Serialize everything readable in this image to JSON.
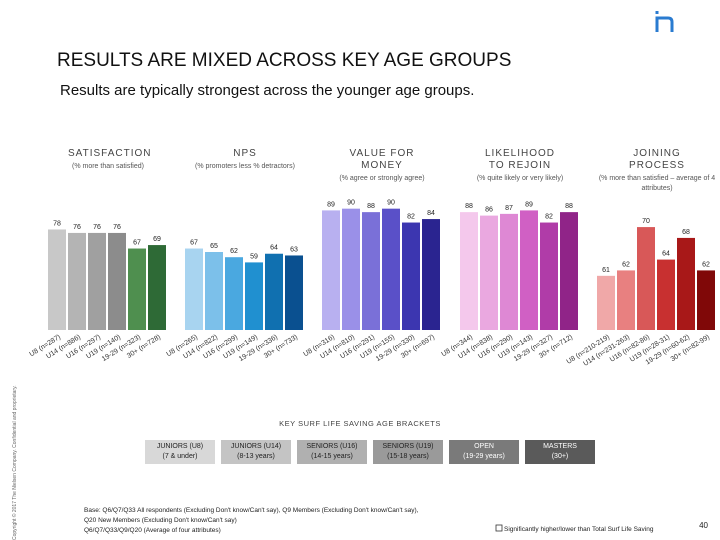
{
  "header": {
    "title": "RESULTS ARE MIXED ACROSS KEY AGE GROUPS",
    "subtitle": "Results are typically strongest across the younger age groups."
  },
  "chart_data": [
    {
      "type": "bar",
      "title": "SATISFACTION",
      "subtitle": "(% more than satisfied)",
      "categories": [
        "U8 (n=287)",
        "U14 (n=886)",
        "U16 (n=297)",
        "U19 (n=140)",
        "19-29 (n=323)",
        "30+ (n=728)"
      ],
      "values": [
        78,
        76,
        76,
        76,
        67,
        69
      ],
      "colors": [
        "#c8c8c8",
        "#b4b4b4",
        "#a0a0a0",
        "#8c8c8c",
        "#4f8f4f",
        "#2e6a36"
      ],
      "ylim": [
        20,
        95
      ]
    },
    {
      "type": "bar",
      "title": "NPS",
      "subtitle": "(% promoters less % detractors)",
      "categories": [
        "U8 (n=265)",
        "U14 (n=822)",
        "U16 (n=299)",
        "U19 (n=149)",
        "19-29 (n=336)",
        "30+ (n=733)"
      ],
      "values": [
        67,
        65,
        62,
        59,
        64,
        63
      ],
      "colors": [
        "#a8d4f0",
        "#7cc0ea",
        "#4aa8e0",
        "#2090d0",
        "#1070b0",
        "#0a5090"
      ],
      "ylim": [
        20,
        95
      ]
    },
    {
      "type": "bar",
      "title": "VALUE FOR MONEY",
      "subtitle": "(% agree or strongly agree)",
      "categories": [
        "U8 (n=316)",
        "U14 (n=810)",
        "U16 (n=291)",
        "U19 (n=155)",
        "19-29 (n=330)",
        "30+ (n=697)"
      ],
      "values": [
        89,
        90,
        88,
        90,
        82,
        84
      ],
      "colors": [
        "#b8b0f0",
        "#9a90e8",
        "#7a70d8",
        "#5a50c8",
        "#3c36b0",
        "#2a2490"
      ],
      "ylim": [
        20,
        95
      ]
    },
    {
      "type": "bar",
      "title": "LIKELIHOOD TO REJOIN",
      "subtitle": "(% quite likely or very likely)",
      "categories": [
        "U8 (n=344)",
        "U14 (n=838)",
        "U16 (n=290)",
        "U19 (n=143)",
        "19-29 (n=327)",
        "30+ (n=712)"
      ],
      "values": [
        88,
        86,
        87,
        89,
        82,
        88
      ],
      "colors": [
        "#f4c8ec",
        "#eaa8e0",
        "#de88d4",
        "#d060c4",
        "#b03ca8",
        "#902488"
      ],
      "ylim": [
        20,
        95
      ]
    },
    {
      "type": "bar",
      "title": "JOINING PROCESS",
      "subtitle": "(% more than satisfied – average of 4 attributes)",
      "categories": [
        "U8 (n=210-219)",
        "U14 (n=231-263)",
        "U16 (n=82-86)",
        "U19 (n=28-31)",
        "19-29 (n=60-62)",
        "30+ (n=82-99)"
      ],
      "values": [
        61,
        62,
        70,
        64,
        68,
        62
      ],
      "colors": [
        "#f0a8a8",
        "#e88080",
        "#d85858",
        "#c83030",
        "#a81818",
        "#800808"
      ],
      "ylim": [
        51,
        75
      ]
    }
  ],
  "legend": {
    "title": "KEY SURF LIFE SAVING AGE BRACKETS",
    "items": [
      {
        "name": "JUNIORS (U8)",
        "range": "(7 & under)",
        "color": "#d8d8d8"
      },
      {
        "name": "JUNIORS (U14)",
        "range": "(8-13 years)",
        "color": "#c4c4c4"
      },
      {
        "name": "SENIORS (U16)",
        "range": "(14-15 years)",
        "color": "#b0b0b0"
      },
      {
        "name": "SENIORS (U19)",
        "range": "(15-18 years)",
        "color": "#9a9a9a"
      },
      {
        "name": "OPEN",
        "range": "(19-29 years)",
        "color": "#7a7a7a"
      },
      {
        "name": "MASTERS",
        "range": "(30+)",
        "color": "#5a5a5a"
      }
    ]
  },
  "footer": {
    "base": "Base: Q6/Q7/Q33 All respondents (Excluding Don't know/Can't say), Q9 Members (Excluding Don't know/Can't say), Q20 New Members (Excluding Don't know/Can't say)",
    "base2": "Q6/Q7/Q33/Q9/Q20 (Average of four attributes)",
    "note": "Significantly higher/lower than Total Surf Life Saving",
    "page": "40",
    "copyright": "Copyright © 2017 The Nielsen Company. Confidential and proprietary."
  }
}
